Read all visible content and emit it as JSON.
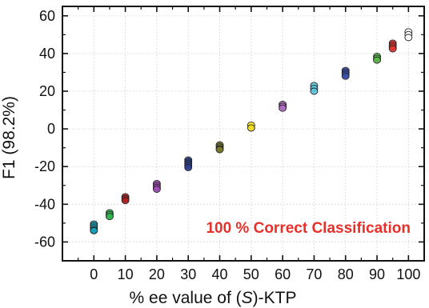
{
  "chart_data": {
    "type": "scatter",
    "xlabel": {
      "prefix": "% ee value of (",
      "italic": "S",
      "suffix": ")-KTP"
    },
    "ylabel": "F1 (98.2%)",
    "xlim": [
      -10,
      105
    ],
    "ylim": [
      -70,
      65
    ],
    "x_ticks": [
      0,
      10,
      20,
      30,
      40,
      50,
      60,
      70,
      80,
      90,
      100
    ],
    "y_ticks": [
      -60,
      -40,
      -20,
      0,
      20,
      40,
      60
    ],
    "grid": true,
    "annotation": "100 % Correct Classification",
    "annotation_color": "#e8302a",
    "series": [
      {
        "x": 0,
        "y": [
          -50.5,
          -51.5,
          -52.5,
          -53.5,
          -54
        ],
        "color": "#17a2b8"
      },
      {
        "x": 5,
        "y": [
          -44.5,
          -45.5,
          -46.5
        ],
        "color": "#2db84d"
      },
      {
        "x": 10,
        "y": [
          -36,
          -37,
          -38
        ],
        "color": "#b01c1c"
      },
      {
        "x": 20,
        "y": [
          -29,
          -30,
          -31,
          -32
        ],
        "color": "#a04ab4"
      },
      {
        "x": 30,
        "y": [
          -16.5,
          -17.5,
          -18.5,
          -19.5,
          -20.5
        ],
        "color": "#2e3f8f"
      },
      {
        "x": 40,
        "y": [
          -8.5,
          -9.5,
          -10.5,
          -11
        ],
        "color": "#7a7a2a"
      },
      {
        "x": 50,
        "y": [
          2,
          0.5
        ],
        "color": "#f2e21a"
      },
      {
        "x": 60,
        "y": [
          13,
          12,
          11
        ],
        "color": "#b46bc8"
      },
      {
        "x": 70,
        "y": [
          23,
          21.5,
          20
        ],
        "color": "#5bc6dd"
      },
      {
        "x": 80,
        "y": [
          31,
          30,
          29,
          28
        ],
        "color": "#3a4fa8"
      },
      {
        "x": 90,
        "y": [
          38.5,
          37.5,
          36.5
        ],
        "color": "#58b848"
      },
      {
        "x": 95,
        "y": [
          45.5,
          44.5,
          43.5,
          42.5
        ],
        "color": "#e8302a"
      },
      {
        "x": 100,
        "y": [
          51.5,
          50,
          48.5
        ],
        "color": "#ffffff"
      }
    ]
  }
}
